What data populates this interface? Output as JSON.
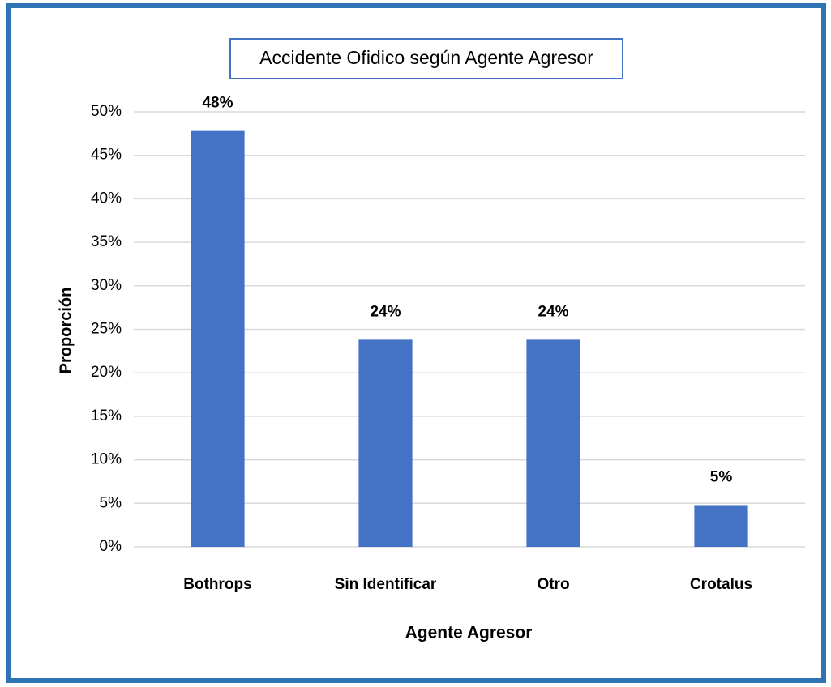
{
  "chart_data": {
    "type": "bar",
    "title": "Accidente Ofidico según Agente Agresor",
    "x_label": "Agente Agresor",
    "y_label": "Proporción",
    "categories": [
      "Bothrops",
      "Sin Identificar",
      "Otro",
      "Crotalus"
    ],
    "values": [
      47.8,
      23.8,
      23.8,
      4.8
    ],
    "value_labels": [
      "48%",
      "24%",
      "24%",
      "5%"
    ],
    "color": "#4472c4",
    "ylim": [
      0,
      50
    ],
    "yticks": [
      {
        "value": 0,
        "label": "0%"
      },
      {
        "value": 5,
        "label": "5%"
      },
      {
        "value": 10,
        "label": "10%"
      },
      {
        "value": 15,
        "label": "15%"
      },
      {
        "value": 20,
        "label": "20%"
      },
      {
        "value": 25,
        "label": "25%"
      },
      {
        "value": 30,
        "label": "30%"
      },
      {
        "value": 35,
        "label": "35%"
      },
      {
        "value": 40,
        "label": "40%"
      },
      {
        "value": 45,
        "label": "45%"
      },
      {
        "value": 50,
        "label": "50%"
      }
    ],
    "grid": true
  }
}
